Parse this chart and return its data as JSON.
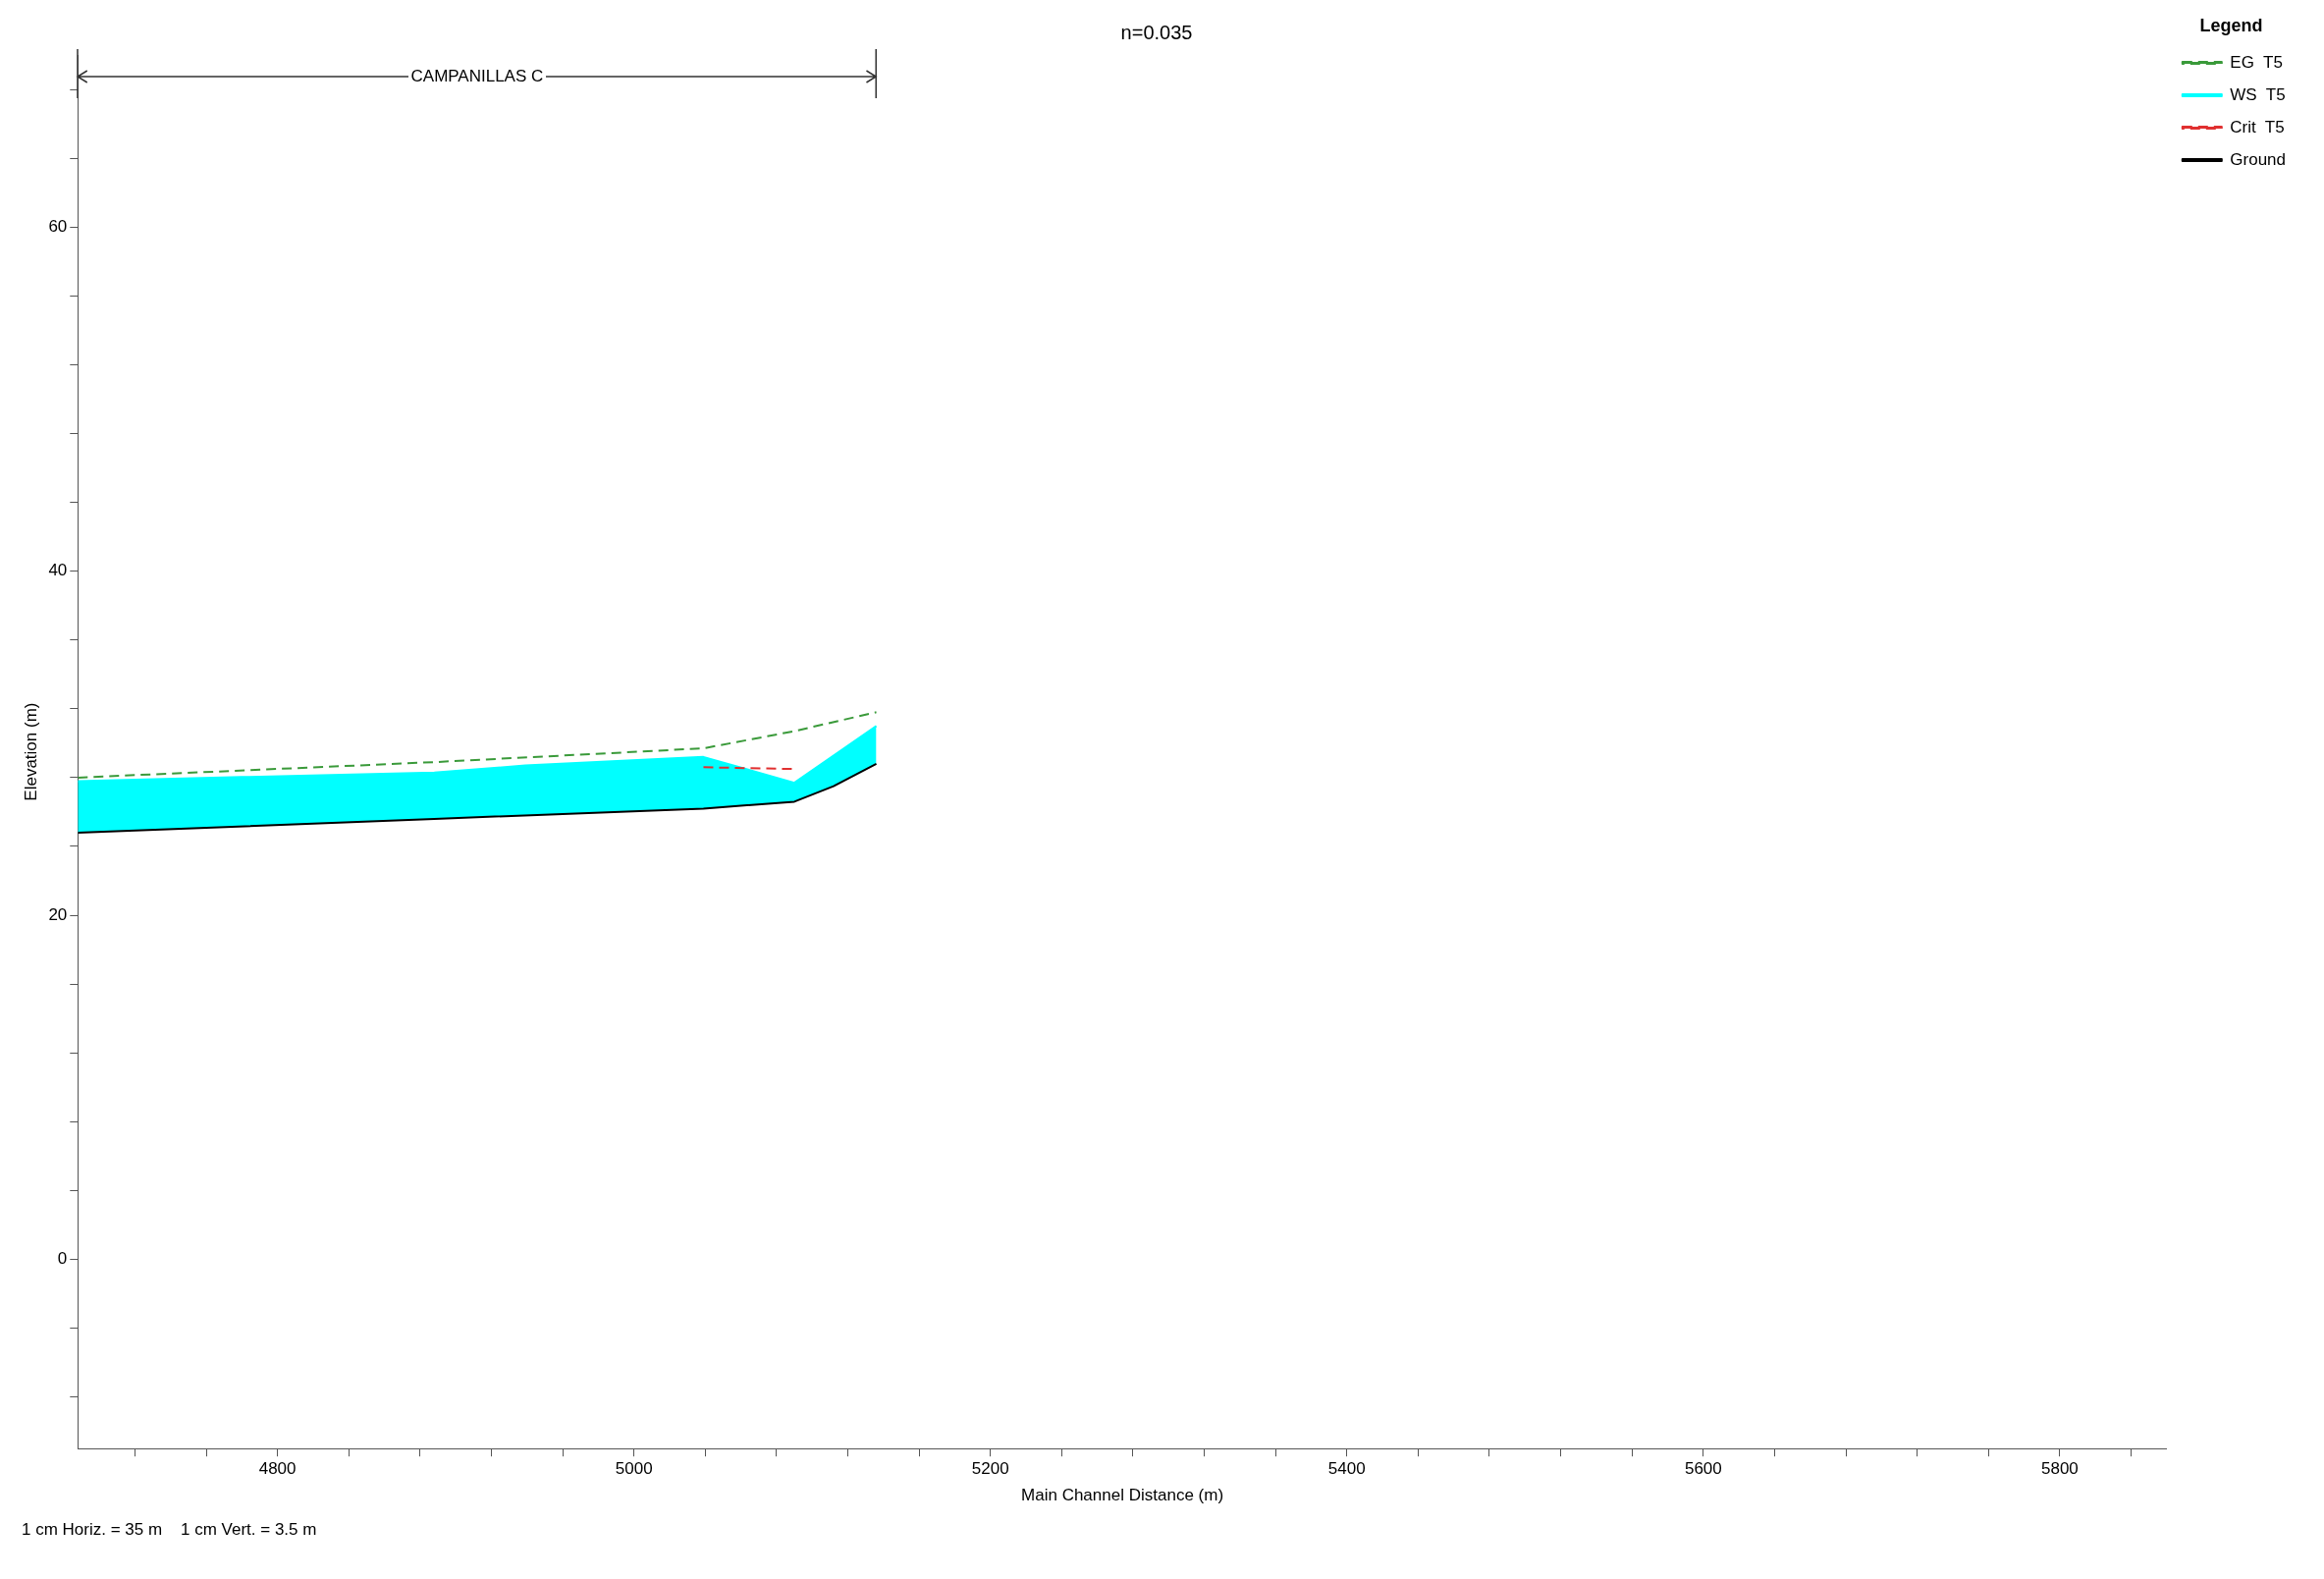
{
  "chart_data": {
    "type": "line",
    "title": "n=0.035",
    "xlabel": "Main Channel Distance (m)",
    "ylabel": "Elevation (m)",
    "legend_title": "Legend",
    "legend": "top right",
    "grid": false,
    "marker": "none",
    "xlim": [
      4688,
      5860
    ],
    "ylim": [
      -11,
      70
    ],
    "xticks": [
      {
        "value": 4720,
        "label": null
      },
      {
        "value": 4760,
        "label": null
      },
      4800,
      {
        "value": 4840,
        "label": null
      },
      {
        "value": 4880,
        "label": null
      },
      {
        "value": 4920,
        "label": null
      },
      {
        "value": 4960,
        "label": null
      },
      5000,
      {
        "value": 5040,
        "label": null
      },
      {
        "value": 5080,
        "label": null
      },
      {
        "value": 5120,
        "label": null
      },
      {
        "value": 5160,
        "label": null
      },
      5200,
      {
        "value": 5240,
        "label": null
      },
      {
        "value": 5280,
        "label": null
      },
      {
        "value": 5320,
        "label": null
      },
      {
        "value": 5360,
        "label": null
      },
      5400,
      {
        "value": 5440,
        "label": null
      },
      {
        "value": 5480,
        "label": null
      },
      {
        "value": 5520,
        "label": null
      },
      {
        "value": 5560,
        "label": null
      },
      5600,
      {
        "value": 5640,
        "label": null
      },
      {
        "value": 5680,
        "label": null
      },
      {
        "value": 5720,
        "label": null
      },
      {
        "value": 5760,
        "label": null
      },
      5800,
      {
        "value": 5840,
        "label": null
      }
    ],
    "yticks": [
      {
        "value": -8,
        "label": null
      },
      {
        "value": -4,
        "label": null
      },
      0,
      {
        "value": 4,
        "label": null
      },
      {
        "value": 8,
        "label": null
      },
      {
        "value": 12,
        "label": null
      },
      {
        "value": 16,
        "label": null
      },
      20,
      {
        "value": 24,
        "label": null
      },
      {
        "value": 28,
        "label": null
      },
      {
        "value": 32,
        "label": null
      },
      {
        "value": 36,
        "label": null
      },
      40,
      {
        "value": 44,
        "label": null
      },
      {
        "value": 48,
        "label": null
      },
      {
        "value": 52,
        "label": null
      },
      {
        "value": 56,
        "label": null
      },
      60,
      {
        "value": 64,
        "label": null
      },
      {
        "value": 68,
        "label": null
      }
    ],
    "series": [
      {
        "name": "EG  T5",
        "line_style": "dashed",
        "color": "#3a9a3a",
        "x": [
          4688,
          4888,
          5039,
          5090,
          5136
        ],
        "values": [
          28.0,
          28.9,
          29.7,
          30.7,
          31.8
        ]
      },
      {
        "name": "WS  T5",
        "type": "area",
        "color": "#00ffff",
        "x": [
          4688,
          4888,
          4939,
          5039,
          5090,
          5136
        ],
        "values": [
          27.8,
          28.3,
          28.7,
          29.2,
          27.7,
          31.0
        ]
      },
      {
        "name": "Crit  T5",
        "line_style": "dashed",
        "color": "#e03030",
        "x": [
          5039,
          5090
        ],
        "values": [
          28.6,
          28.5
        ]
      },
      {
        "name": "Ground",
        "line_style": "solid",
        "color": "#000000",
        "x": [
          4688,
          4888,
          5039,
          5090,
          5112,
          5136
        ],
        "values": [
          24.8,
          25.6,
          26.2,
          26.6,
          27.5,
          28.8
        ]
      }
    ],
    "annotations": [
      "CAMPANILLAS C",
      "1 cm Horiz. = 35 m    1 cm Vert. = 3.5 m"
    ]
  }
}
